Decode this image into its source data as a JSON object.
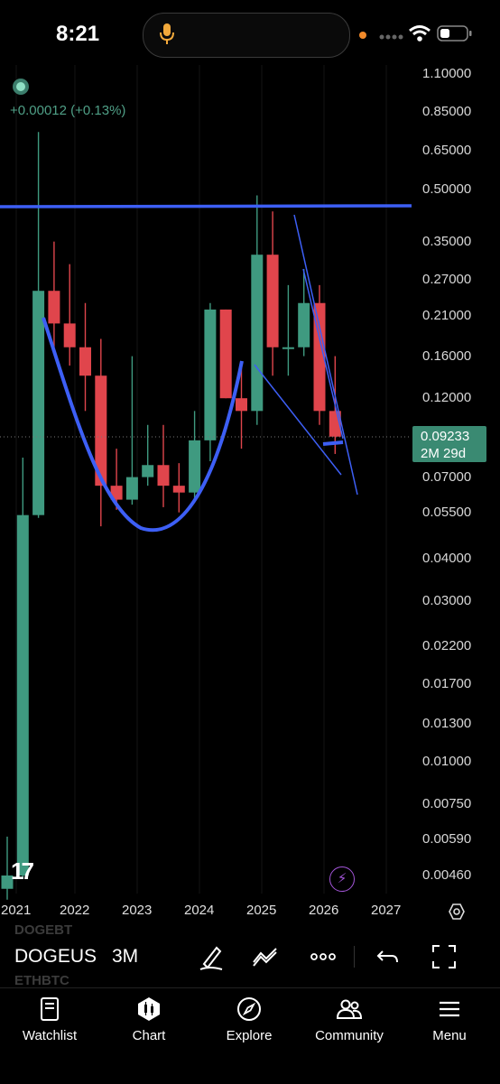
{
  "status_bar": {
    "time": "8:21"
  },
  "chart": {
    "change_text": "+0.00012 (+0.13%)",
    "price_label": "0.09233",
    "countdown_label": "2M 29d",
    "y_ticks": [
      "1.10000",
      "0.85000",
      "0.65000",
      "0.50000",
      "0.35000",
      "0.27000",
      "0.21000",
      "0.16000",
      "0.12000",
      "0.07000",
      "0.05500",
      "0.04000",
      "0.03000",
      "0.02200",
      "0.01700",
      "0.01300",
      "0.01000",
      "0.00750",
      "0.00590",
      "0.00460"
    ],
    "x_ticks": [
      "2021",
      "2022",
      "2023",
      "2024",
      "2025",
      "2026",
      "2027"
    ],
    "logo_text": "17"
  },
  "chart_data": {
    "type": "candlestick",
    "scale": "log",
    "interval": "3M",
    "ylim": [
      0.0042,
      1.2
    ],
    "colors": {
      "up": "#3f9a80",
      "down": "#e0454c",
      "trendline": "#3d5ff5"
    },
    "candles": [
      {
        "t": "2020-Q4",
        "o": 0.0042,
        "h": 0.006,
        "l": 0.0039,
        "c": 0.0046
      },
      {
        "t": "2021-Q1",
        "o": 0.0046,
        "h": 0.08,
        "l": 0.0045,
        "c": 0.054
      },
      {
        "t": "2021-Q2",
        "o": 0.054,
        "h": 0.74,
        "l": 0.053,
        "c": 0.25
      },
      {
        "t": "2021-Q3",
        "o": 0.25,
        "h": 0.35,
        "l": 0.17,
        "c": 0.2
      },
      {
        "t": "2021-Q4",
        "o": 0.2,
        "h": 0.3,
        "l": 0.15,
        "c": 0.17
      },
      {
        "t": "2022-Q1",
        "o": 0.17,
        "h": 0.23,
        "l": 0.11,
        "c": 0.14
      },
      {
        "t": "2022-Q2",
        "o": 0.14,
        "h": 0.18,
        "l": 0.05,
        "c": 0.066
      },
      {
        "t": "2022-Q3",
        "o": 0.066,
        "h": 0.085,
        "l": 0.056,
        "c": 0.06
      },
      {
        "t": "2022-Q4",
        "o": 0.06,
        "h": 0.16,
        "l": 0.058,
        "c": 0.07
      },
      {
        "t": "2023-Q1",
        "o": 0.07,
        "h": 0.1,
        "l": 0.066,
        "c": 0.076
      },
      {
        "t": "2023-Q2",
        "o": 0.076,
        "h": 0.1,
        "l": 0.057,
        "c": 0.066
      },
      {
        "t": "2023-Q3",
        "o": 0.066,
        "h": 0.077,
        "l": 0.055,
        "c": 0.063
      },
      {
        "t": "2023-Q4",
        "o": 0.063,
        "h": 0.11,
        "l": 0.06,
        "c": 0.09
      },
      {
        "t": "2024-Q1",
        "o": 0.09,
        "h": 0.23,
        "l": 0.078,
        "c": 0.22
      },
      {
        "t": "2024-Q2",
        "o": 0.22,
        "h": 0.22,
        "l": 0.12,
        "c": 0.12
      },
      {
        "t": "2024-Q3",
        "o": 0.12,
        "h": 0.15,
        "l": 0.085,
        "c": 0.11
      },
      {
        "t": "2024-Q4",
        "o": 0.11,
        "h": 0.48,
        "l": 0.1,
        "c": 0.32
      },
      {
        "t": "2025-Q1",
        "o": 0.32,
        "h": 0.43,
        "l": 0.14,
        "c": 0.17
      },
      {
        "t": "2025-Q2",
        "o": 0.17,
        "h": 0.26,
        "l": 0.14,
        "c": 0.17
      },
      {
        "t": "2025-Q3",
        "o": 0.17,
        "h": 0.29,
        "l": 0.16,
        "c": 0.23
      },
      {
        "t": "2025-Q4",
        "o": 0.23,
        "h": 0.26,
        "l": 0.1,
        "c": 0.11
      },
      {
        "t": "2026-Q1",
        "o": 0.11,
        "h": 0.16,
        "l": 0.082,
        "c": 0.0923
      }
    ]
  },
  "toolbar": {
    "ghost_symbol_top": "DOGEBT",
    "symbol": "DOGEUS",
    "ghost_symbol_bottom": "ETHBTC",
    "interval": "3M"
  },
  "tabs": [
    {
      "label": "Watchlist",
      "icon": "book-icon"
    },
    {
      "label": "Chart",
      "icon": "chart-icon"
    },
    {
      "label": "Explore",
      "icon": "compass-icon"
    },
    {
      "label": "Community",
      "icon": "people-icon"
    },
    {
      "label": "Menu",
      "icon": "menu-icon"
    }
  ]
}
